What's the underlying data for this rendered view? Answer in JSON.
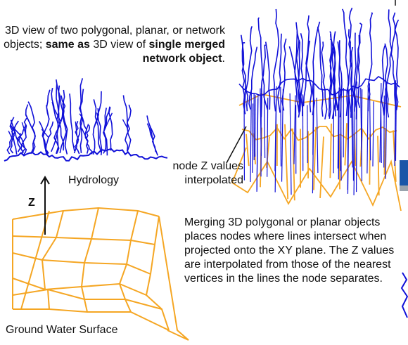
{
  "intro": {
    "part1": "3D view of two polygonal, planar, or network objects; ",
    "bold1": "same as",
    "part2": " 3D view of ",
    "bold2": "single merged network object",
    "part3": "."
  },
  "labels": {
    "hydrology": "Hydrology",
    "z_axis": "Z",
    "ground_water": "Ground Water Surface",
    "node_note": "node Z values interpolated",
    "merge_note": "Merging 3D polygonal or planar objects places nodes where lines intersect when projected onto the XY plane.  The Z values are interpolated from those of the nearest vertices in the lines the node separates."
  },
  "colors": {
    "hydrology_blue": "#1010d8",
    "surface_orange": "#f5a623",
    "text": "#111111"
  }
}
